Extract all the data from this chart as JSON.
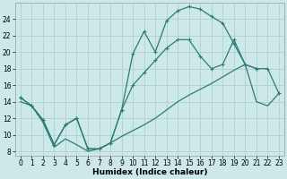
{
  "xlabel": "Humidex (Indice chaleur)",
  "bg_color": "#cce8e8",
  "grid_color": "#aacccc",
  "line_color": "#2d7d74",
  "xlim": [
    -0.5,
    23.5
  ],
  "ylim": [
    7.5,
    26.0
  ],
  "xticks": [
    0,
    1,
    2,
    3,
    4,
    5,
    6,
    7,
    8,
    9,
    10,
    11,
    12,
    13,
    14,
    15,
    16,
    17,
    18,
    19,
    20,
    21,
    22,
    23
  ],
  "yticks": [
    8,
    10,
    12,
    14,
    16,
    18,
    20,
    22,
    24
  ],
  "curve1_x": [
    0,
    1,
    2,
    3,
    4,
    5,
    6,
    7,
    8,
    9,
    10,
    11,
    12,
    13,
    14,
    15,
    16,
    17,
    18,
    19,
    20,
    21
  ],
  "curve1_y": [
    14.5,
    13.5,
    11.8,
    8.8,
    11.2,
    12.0,
    8.3,
    8.3,
    9.0,
    13.0,
    19.8,
    22.5,
    20.0,
    23.8,
    25.0,
    25.5,
    25.2,
    24.3,
    23.5,
    21.0,
    18.5,
    18.0
  ],
  "curve2_x": [
    0,
    1,
    2,
    3,
    4,
    5,
    6,
    7,
    8,
    9,
    10,
    11,
    12,
    13,
    14,
    15,
    16,
    17,
    18,
    19,
    20,
    21,
    22,
    23
  ],
  "curve2_y": [
    14.5,
    13.5,
    11.8,
    8.8,
    11.2,
    12.0,
    8.3,
    8.3,
    9.0,
    13.0,
    16.0,
    17.5,
    19.0,
    20.5,
    21.5,
    21.5,
    19.5,
    18.0,
    18.5,
    21.5,
    18.5,
    18.0,
    18.0,
    15.0
  ],
  "curve3_x": [
    0,
    1,
    2,
    3,
    4,
    5,
    6,
    7,
    8,
    9,
    10,
    11,
    12,
    13,
    14,
    15,
    16,
    17,
    18,
    19,
    20,
    21,
    22,
    23
  ],
  "curve3_y": [
    14.0,
    13.5,
    11.5,
    8.5,
    9.5,
    8.8,
    8.0,
    8.3,
    9.0,
    9.8,
    10.5,
    11.2,
    12.0,
    13.0,
    14.0,
    14.8,
    15.5,
    16.2,
    17.0,
    17.8,
    18.5,
    14.0,
    13.5,
    15.0
  ]
}
